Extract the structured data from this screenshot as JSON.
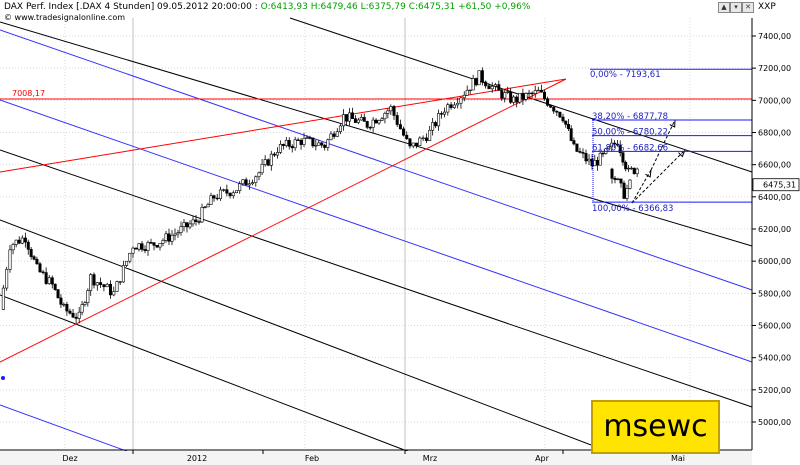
{
  "header": {
    "title_part": "DAX Perf. Index [.DAX  4 Stunden] 09.05.2012 20:00:00 :",
    "ohlc_part": "O:6413,93 H:6479,46 L:6375,79 C:6475,31 +61,50 +0,96%",
    "watermark": "© www.tradesignalonline.com",
    "axis_title": "XXP"
  },
  "badge": {
    "text": "msewc"
  },
  "colors": {
    "candle_up": "#ffffff",
    "candle_down": "#000000",
    "fib": "#1a1aff",
    "trend_red": "#ff0000",
    "channel_blue": "#3333ff",
    "channel_black": "#000000"
  },
  "chart_data": {
    "type": "candlestick",
    "title": "DAX Perf. Index [.DAX  4 Stunden]",
    "timeframe": "4 Stunden",
    "ylim": [
      4900,
      7500
    ],
    "y_ticks": [
      5000,
      5200,
      5400,
      5600,
      5800,
      6000,
      6200,
      6400,
      6600,
      6800,
      7000,
      7200,
      7400
    ],
    "y_tick_labels": [
      "5000,00",
      "5200,00",
      "5400,00",
      "5600,00",
      "5800,00",
      "6000,00",
      "6200,00",
      "6400,00",
      "6600,00",
      "6800,00",
      "7000,00",
      "7200,00",
      "7400,00"
    ],
    "x_labels": [
      "Dez",
      "2012",
      "Feb",
      "Mrz",
      "Apr",
      "Mai"
    ],
    "last_price": {
      "value": 6475.31,
      "label": "6475,31"
    },
    "horizontal_level": {
      "value": 7008.17,
      "label": "7008,17"
    },
    "fibonacci": [
      {
        "level": "0,00%",
        "value": 7193.61,
        "label": "0,00% - 7193,61"
      },
      {
        "level": "38,20%",
        "value": 6877.78,
        "label": "38,20% - 6877,78"
      },
      {
        "level": "50,00%",
        "value": 6780.22,
        "label": "50,00% - 6780,22"
      },
      {
        "level": "61,80%",
        "value": 6682.66,
        "label": "61,80% - 6682,66"
      },
      {
        "level": "100,00%",
        "value": 6366.83,
        "label": "100,00% - 6366,83"
      }
    ],
    "price_path": [
      [
        "Nov-28",
        5700
      ],
      [
        "Dez-01",
        6100
      ],
      [
        "Dez-05",
        6150
      ],
      [
        "Dez-08",
        5950
      ],
      [
        "Dez-12",
        5850
      ],
      [
        "Dez-15",
        5700
      ],
      [
        "Dez-19",
        5650
      ],
      [
        "Dez-22",
        5900
      ],
      [
        "Dez-28",
        5800
      ],
      [
        "Jan-02",
        6100
      ],
      [
        "Jan-06",
        6100
      ],
      [
        "Jan-10",
        6150
      ],
      [
        "Jan-16",
        6250
      ],
      [
        "Jan-20",
        6400
      ],
      [
        "Jan-25",
        6450
      ],
      [
        "Jan-30",
        6550
      ],
      [
        "Feb-03",
        6700
      ],
      [
        "Feb-08",
        6750
      ],
      [
        "Feb-13",
        6720
      ],
      [
        "Feb-17",
        6900
      ],
      [
        "Feb-22",
        6850
      ],
      [
        "Feb-27",
        6950
      ],
      [
        "Mrz-02",
        6700
      ],
      [
        "Mrz-06",
        6800
      ],
      [
        "Mrz-09",
        6950
      ],
      [
        "Mrz-13",
        7050
      ],
      [
        "Mrz-16",
        7150
      ],
      [
        "Mrz-20",
        7050
      ],
      [
        "Mrz-23",
        7000
      ],
      [
        "Mrz-28",
        7050
      ],
      [
        "Apr-02",
        6900
      ],
      [
        "Apr-05",
        6700
      ],
      [
        "Apr-10",
        6600
      ],
      [
        "Apr-13",
        6650
      ],
      [
        "Apr-17",
        6750
      ],
      [
        "Apr-20",
        6550
      ],
      [
        "Apr-24",
        6600
      ],
      [
        "Apr-27",
        6750
      ],
      [
        "Mai-02",
        6850
      ],
      [
        "Mai-04",
        6550
      ],
      [
        "Mai-07",
        6420
      ],
      [
        "Mai-09",
        6475
      ]
    ]
  }
}
